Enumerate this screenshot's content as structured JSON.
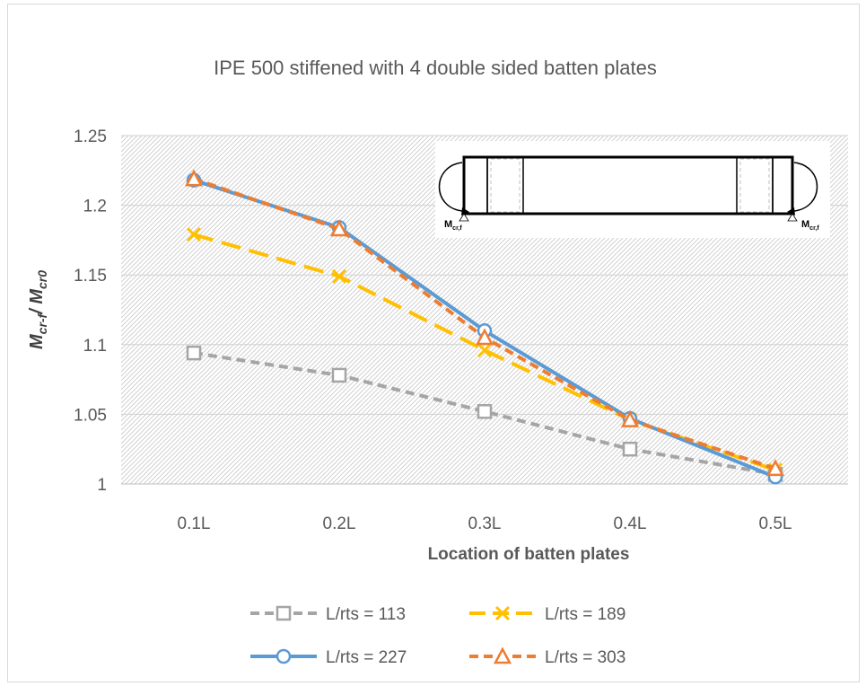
{
  "chart_data": {
    "type": "line",
    "title": "IPE 500 stiffened with 4 double sided batten plates",
    "xlabel": "Location of batten plates",
    "ylabel": {
      "main": "M",
      "sub1": "cr-f",
      "sep": "/ M",
      "sub2": "cr0"
    },
    "categories": [
      "0.1L",
      "0.2L",
      "0.3L",
      "0.4L",
      "0.5L"
    ],
    "ylim": [
      1,
      1.25
    ],
    "yticks": [
      "1",
      "1.05",
      "1.1",
      "1.15",
      "1.2",
      "1.25"
    ],
    "grid": true,
    "legend_position": "bottom",
    "series": [
      {
        "name": "L/rts = 113",
        "values": [
          1.094,
          1.078,
          1.052,
          1.025,
          1.007
        ],
        "color": "#a5a5a5",
        "marker": "square",
        "dash": "dashed"
      },
      {
        "name": "L/rts = 189",
        "values": [
          1.179,
          1.149,
          1.096,
          1.046,
          1.01
        ],
        "color": "#ffc000",
        "marker": "x",
        "dash": "long-dash"
      },
      {
        "name": "L/rts = 227",
        "values": [
          1.218,
          1.184,
          1.11,
          1.047,
          1.005
        ],
        "color": "#5b9bd5",
        "marker": "circle",
        "dash": "solid"
      },
      {
        "name": "L/rts = 303",
        "values": [
          1.219,
          1.183,
          1.105,
          1.046,
          1.011
        ],
        "color": "#ed7d31",
        "marker": "triangle",
        "dash": "dashed"
      }
    ],
    "inset": {
      "label_left_main": "M",
      "label_left_sub": "cr,f",
      "label_right_main": "M",
      "label_right_sub": "cr,f"
    }
  }
}
